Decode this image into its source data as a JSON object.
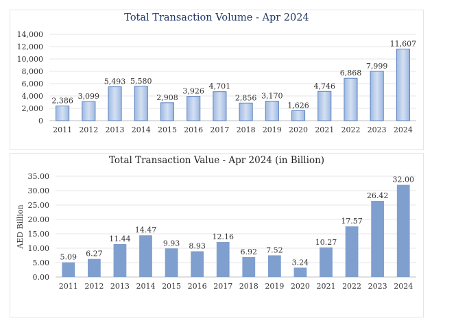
{
  "chart_data": [
    {
      "type": "bar",
      "title": "Total Transaction Volume - Apr 2024",
      "categories": [
        "2011",
        "2012",
        "2013",
        "2014",
        "2015",
        "2016",
        "2017",
        "2018",
        "2019",
        "2020",
        "2021",
        "2022",
        "2023",
        "2024"
      ],
      "values": [
        2386,
        3099,
        5493,
        5580,
        2908,
        3926,
        4701,
        2856,
        3170,
        1626,
        4746,
        6868,
        7999,
        11607
      ],
      "value_labels": [
        "2,386",
        "3,099",
        "5,493",
        "5,580",
        "2,908",
        "3,926",
        "4,701",
        "2,856",
        "3,170",
        "1,626",
        "4,746",
        "6,868",
        "7,999",
        "11,607"
      ],
      "y_ticks": [
        "0",
        "2,000",
        "4,000",
        "6,000",
        "8,000",
        "10,000",
        "12,000",
        "14,000"
      ],
      "xlabel": "",
      "ylabel": "",
      "ylim": [
        0,
        14000
      ],
      "grid": true,
      "bar_color": "#b4c7e7"
    },
    {
      "type": "bar",
      "title": "Total Transaction Value - Apr 2024 (in Billion)",
      "categories": [
        "2011",
        "2012",
        "2013",
        "2014",
        "2015",
        "2016",
        "2017",
        "2018",
        "2019",
        "2020",
        "2021",
        "2022",
        "2023",
        "2024"
      ],
      "values": [
        5.09,
        6.27,
        11.44,
        14.47,
        9.93,
        8.93,
        12.16,
        6.92,
        7.52,
        3.24,
        10.27,
        17.57,
        26.42,
        32.0
      ],
      "value_labels": [
        "5.09",
        "6.27",
        "11.44",
        "14.47",
        "9.93",
        "8.93",
        "12.16",
        "6.92",
        "7.52",
        "3.24",
        "10.27",
        "17.57",
        "26.42",
        "32.00"
      ],
      "y_ticks": [
        "0.00",
        "5.00",
        "10.00",
        "15.00",
        "20.00",
        "25.00",
        "30.00",
        "35.00"
      ],
      "xlabel": "",
      "ylabel": "AED Billion",
      "ylim": [
        0,
        35
      ],
      "grid": true,
      "bar_color": "#7f9fcf"
    }
  ]
}
